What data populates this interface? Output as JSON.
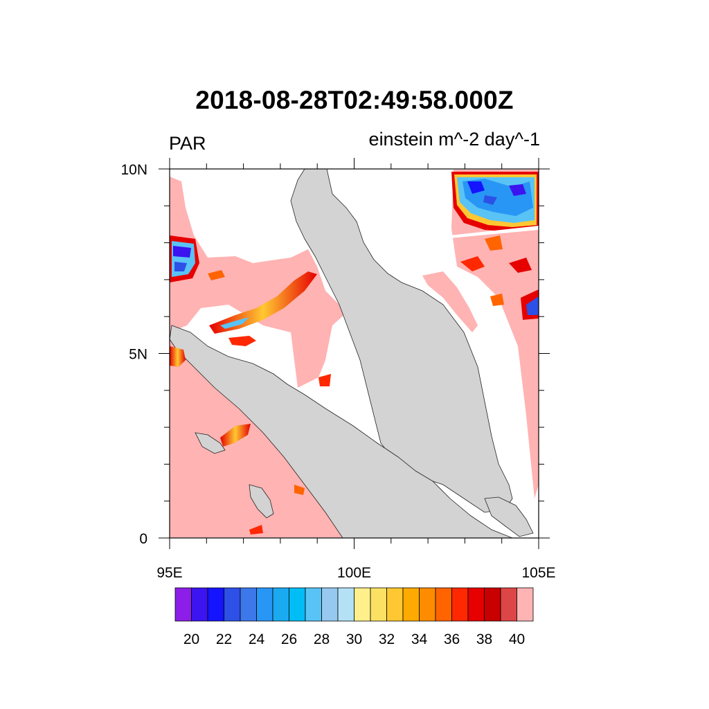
{
  "title": "2018-08-28T02:49:58.000Z",
  "variable_label": "PAR",
  "units_label": "einstein m^-2 day^-1",
  "map": {
    "lon_range": [
      95,
      105
    ],
    "lat_range": [
      0,
      10
    ],
    "lon_ticks": [
      {
        "value": 95,
        "label": "95E"
      },
      {
        "value": 100,
        "label": "100E"
      },
      {
        "value": 105,
        "label": "105E"
      }
    ],
    "lat_ticks": [
      {
        "value": 0,
        "label": "0"
      },
      {
        "value": 5,
        "label": "5N"
      },
      {
        "value": 10,
        "label": "10N"
      }
    ],
    "land_color": "#d3d3d3",
    "missing_color": "#ffffff",
    "background_field_color": "#ffb3b3"
  },
  "colorbar": {
    "colors": [
      "#8c1ee8",
      "#3c14f0",
      "#1414ff",
      "#2d50e6",
      "#3c78ea",
      "#2896f5",
      "#19aaf0",
      "#00bef5",
      "#5ac3f5",
      "#96c8f0",
      "#b4e1f5",
      "#fff08c",
      "#fae164",
      "#ffc832",
      "#ffaa00",
      "#ff8c00",
      "#ff6400",
      "#ff2800",
      "#e60000",
      "#c80000",
      "#dc4646",
      "#ffb4b4"
    ],
    "labels": [
      "20",
      "22",
      "24",
      "26",
      "28",
      "30",
      "32",
      "34",
      "36",
      "38",
      "40"
    ]
  }
}
